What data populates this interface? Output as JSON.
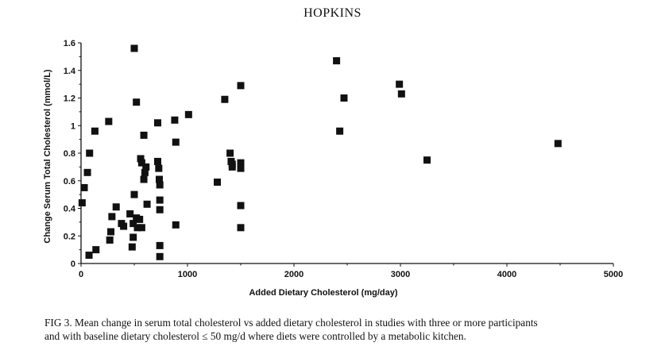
{
  "running_head": "HOPKINS",
  "caption": {
    "line1": "FIG 3. Mean change in serum total cholesterol vs added dietary cholesterol in studies with three or more participants",
    "line2": "and with baseline dietary cholesterol ≤ 50 mg/d where diets were controlled by a metabolic kitchen."
  },
  "colors": {
    "marker": "#111111",
    "axis": "#111111"
  },
  "chart_data": {
    "type": "scatter",
    "title": "",
    "xlabel": "Added Dietary Cholesterol (mg/day)",
    "ylabel": "Change Serum Total Cholesterol (mmol/L)",
    "xlim": [
      0,
      5000
    ],
    "ylim": [
      0,
      1.6
    ],
    "xticks": [
      0,
      1000,
      2000,
      3000,
      4000,
      5000
    ],
    "yticks": [
      0,
      0.2,
      0.4,
      0.6,
      0.8,
      1,
      1.2,
      1.4,
      1.6
    ],
    "ytick_labels": [
      "0",
      "0.2",
      "0.4",
      "0.6",
      "0.8",
      "1",
      "1.2",
      "1.4",
      "1.6"
    ],
    "grid": false,
    "legend": "none",
    "marker": "filled-square",
    "series": [
      {
        "points": [
          [
            10,
            0.44
          ],
          [
            30,
            0.55
          ],
          [
            60,
            0.66
          ],
          [
            75,
            0.06
          ],
          [
            80,
            0.8
          ],
          [
            130,
            0.96
          ],
          [
            140,
            0.1
          ],
          [
            260,
            1.03
          ],
          [
            270,
            0.17
          ],
          [
            280,
            0.23
          ],
          [
            290,
            0.34
          ],
          [
            330,
            0.41
          ],
          [
            380,
            0.29
          ],
          [
            400,
            0.27
          ],
          [
            460,
            0.36
          ],
          [
            480,
            0.12
          ],
          [
            490,
            0.19
          ],
          [
            490,
            0.29
          ],
          [
            500,
            0.5
          ],
          [
            500,
            1.56
          ],
          [
            520,
            1.17
          ],
          [
            520,
            0.33
          ],
          [
            530,
            0.26
          ],
          [
            550,
            0.32
          ],
          [
            560,
            0.76
          ],
          [
            570,
            0.73
          ],
          [
            570,
            0.26
          ],
          [
            590,
            0.61
          ],
          [
            590,
            0.93
          ],
          [
            600,
            0.66
          ],
          [
            610,
            0.7
          ],
          [
            620,
            0.43
          ],
          [
            720,
            0.74
          ],
          [
            720,
            1.02
          ],
          [
            730,
            0.69
          ],
          [
            735,
            0.61
          ],
          [
            740,
            0.57
          ],
          [
            740,
            0.46
          ],
          [
            740,
            0.39
          ],
          [
            740,
            0.13
          ],
          [
            740,
            0.05
          ],
          [
            880,
            1.04
          ],
          [
            890,
            0.88
          ],
          [
            890,
            0.28
          ],
          [
            1010,
            1.08
          ],
          [
            1280,
            0.59
          ],
          [
            1350,
            1.19
          ],
          [
            1400,
            0.8
          ],
          [
            1410,
            0.74
          ],
          [
            1420,
            0.72
          ],
          [
            1420,
            0.7
          ],
          [
            1500,
            1.29
          ],
          [
            1500,
            0.73
          ],
          [
            1500,
            0.71
          ],
          [
            1500,
            0.69
          ],
          [
            1500,
            0.42
          ],
          [
            1500,
            0.26
          ],
          [
            2400,
            1.47
          ],
          [
            2430,
            0.96
          ],
          [
            2470,
            1.2
          ],
          [
            2990,
            1.3
          ],
          [
            3010,
            1.23
          ],
          [
            3250,
            0.75
          ],
          [
            4480,
            0.87
          ]
        ]
      }
    ]
  }
}
